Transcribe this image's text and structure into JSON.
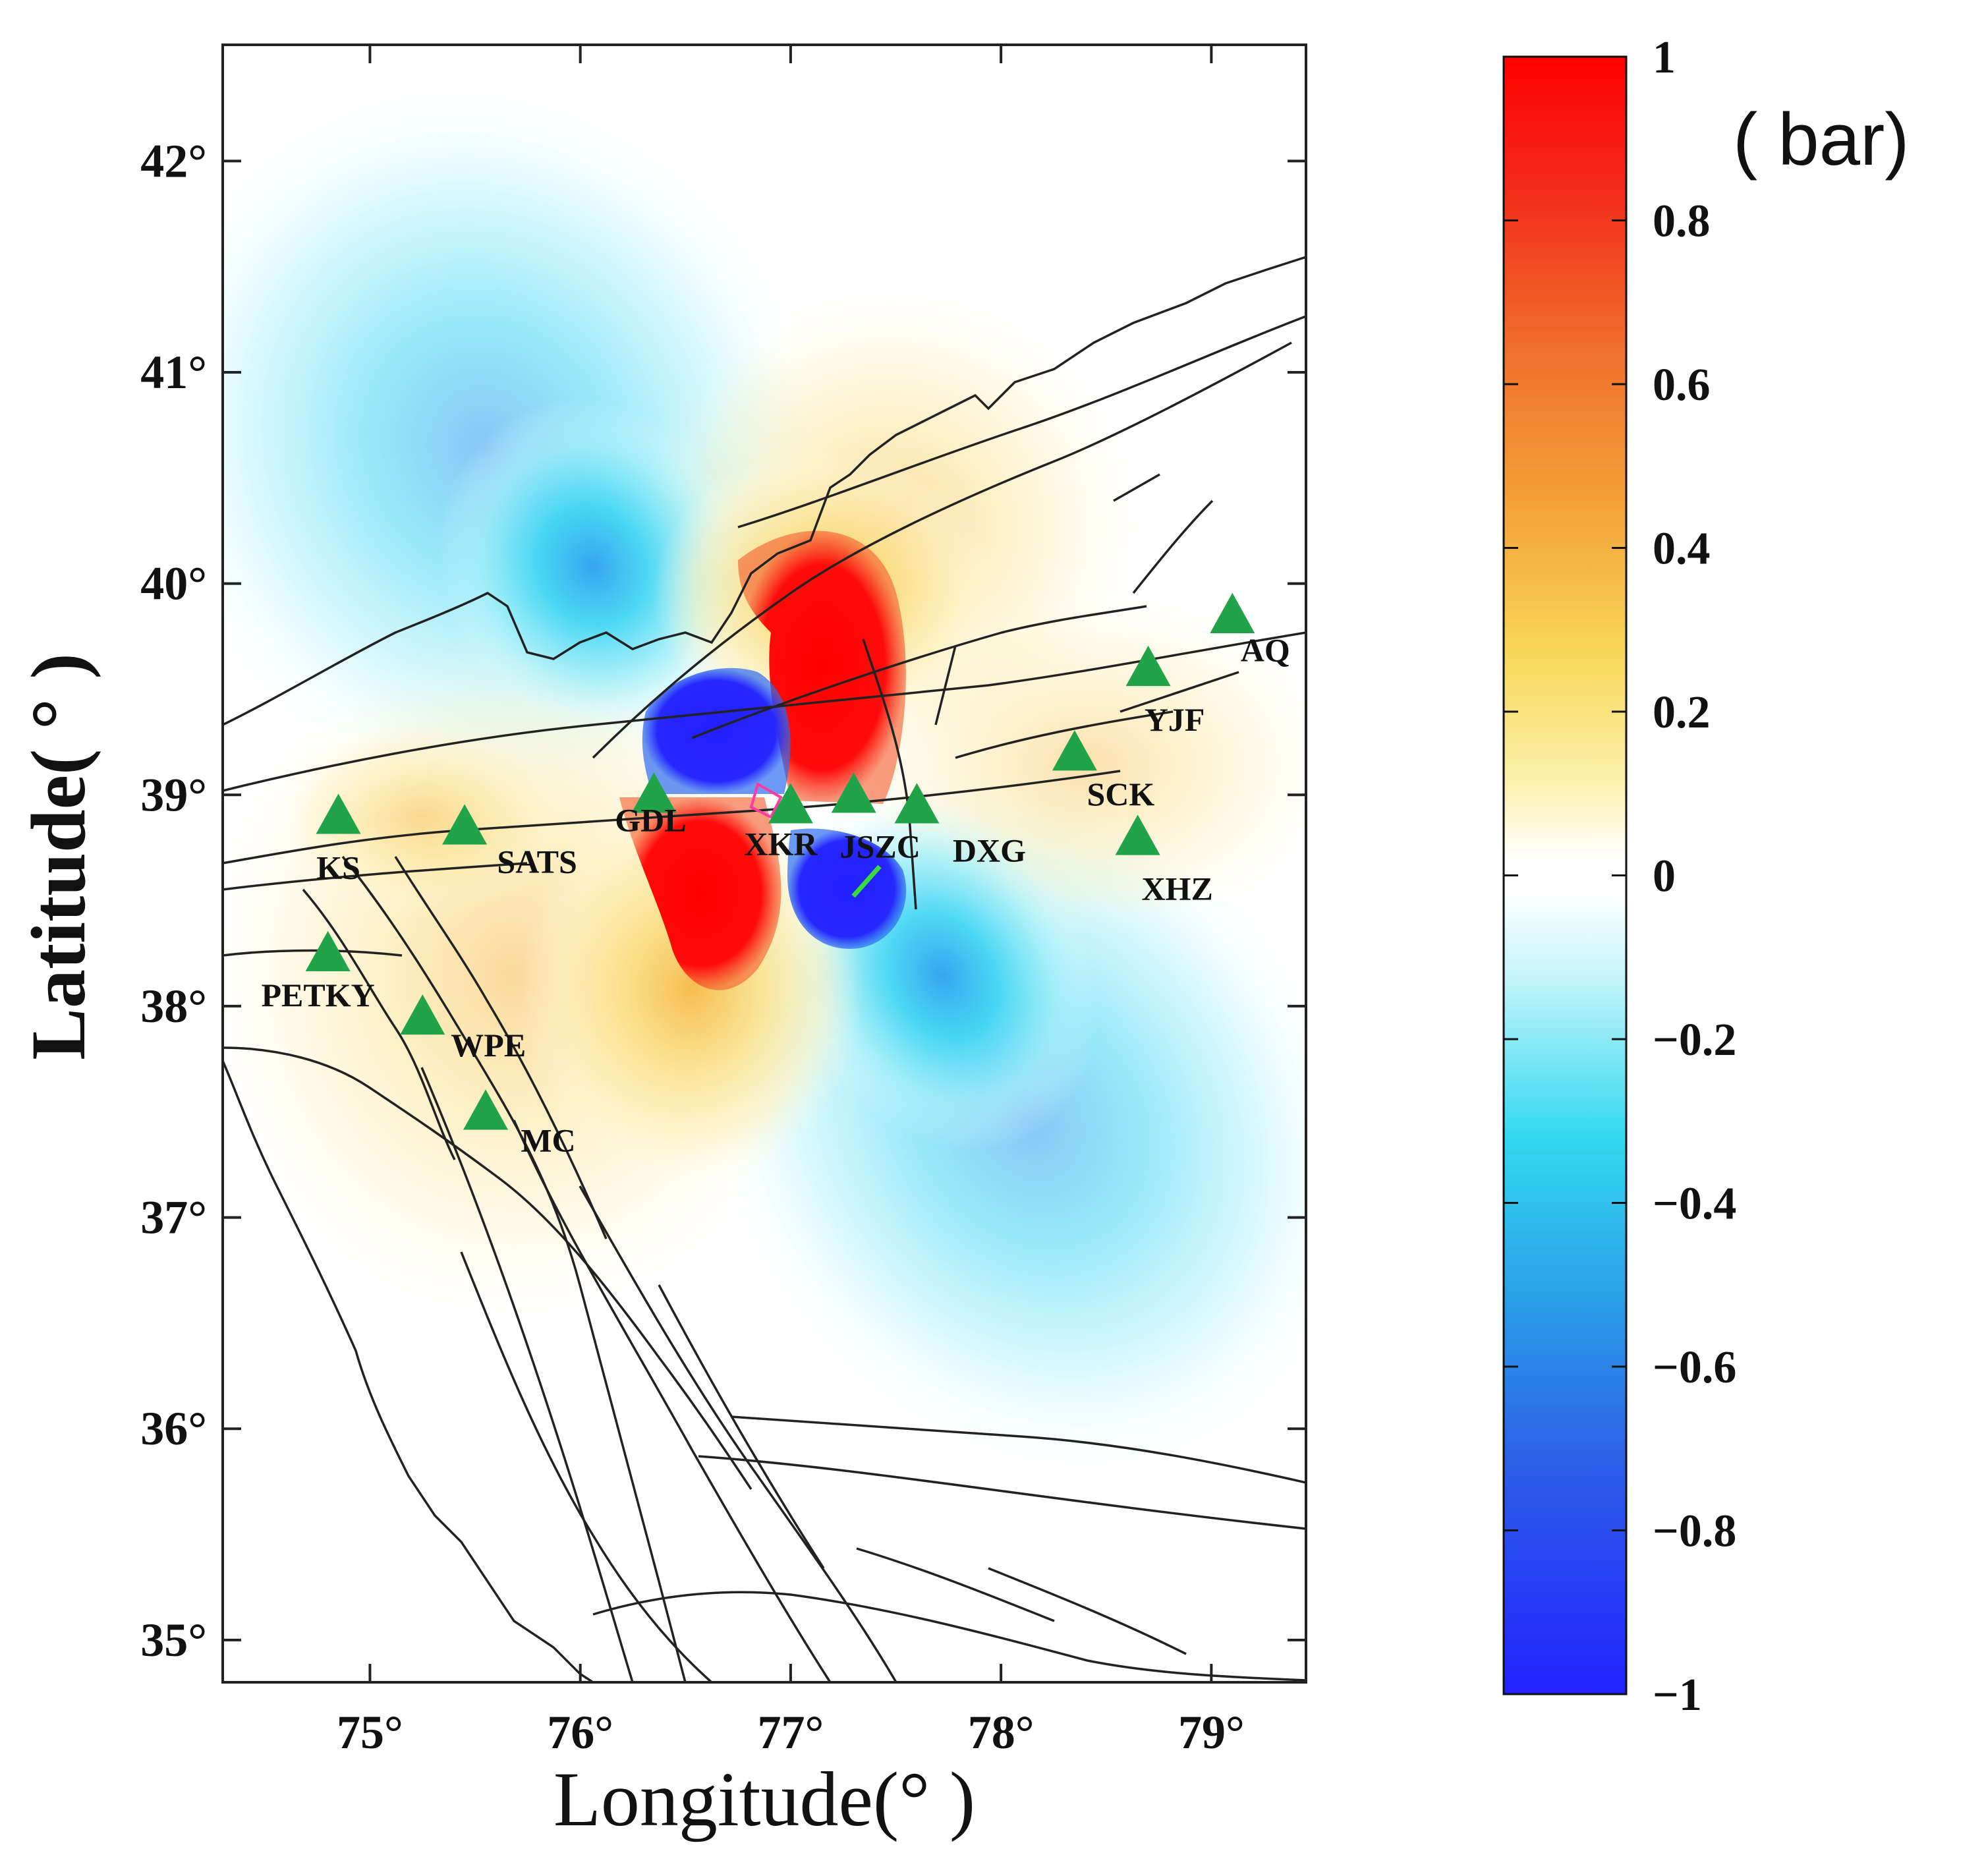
{
  "map": {
    "lon_range": [
      74.3,
      79.45
    ],
    "lat_range": [
      34.8,
      42.55
    ],
    "x_ticks": [
      {
        "value": 75,
        "label": "75°"
      },
      {
        "value": 76,
        "label": "76°"
      },
      {
        "value": 77,
        "label": "77°"
      },
      {
        "value": 78,
        "label": "78°"
      },
      {
        "value": 79,
        "label": "79°"
      }
    ],
    "y_ticks": [
      {
        "value": 35,
        "label": "35°"
      },
      {
        "value": 36,
        "label": "36°"
      },
      {
        "value": 37,
        "label": "37°"
      },
      {
        "value": 38,
        "label": "38°"
      },
      {
        "value": 39,
        "label": "39°"
      },
      {
        "value": 40,
        "label": "40°"
      },
      {
        "value": 41,
        "label": "41°"
      },
      {
        "value": 42,
        "label": "42°"
      }
    ],
    "xlabel": "Longitude(° )",
    "ylabel": "Latitude( ° )",
    "station_color": "#21a34a",
    "fault_color": "#222222",
    "stations": [
      {
        "name": "KS",
        "lon": 74.85,
        "lat": 38.9
      },
      {
        "name": "SATS",
        "lon": 75.45,
        "lat": 38.85
      },
      {
        "name": "GDL",
        "lon": 76.35,
        "lat": 39.0
      },
      {
        "name": "XKR",
        "lon": 77.0,
        "lat": 38.95
      },
      {
        "name": "JSZC",
        "lon": 77.3,
        "lat": 39.0
      },
      {
        "name": "DXG",
        "lon": 77.6,
        "lat": 38.95
      },
      {
        "name": "SCK",
        "lon": 78.35,
        "lat": 39.2
      },
      {
        "name": "XHZ",
        "lon": 78.65,
        "lat": 38.8
      },
      {
        "name": "YJF",
        "lon": 78.7,
        "lat": 39.6
      },
      {
        "name": "AQ",
        "lon": 79.1,
        "lat": 39.85
      },
      {
        "name": "PETKY",
        "lon": 74.8,
        "lat": 38.25
      },
      {
        "name": "WPE",
        "lon": 75.25,
        "lat": 37.95
      },
      {
        "name": "MC",
        "lon": 75.55,
        "lat": 37.5
      }
    ]
  },
  "colorbar": {
    "range": [
      -1,
      1
    ],
    "unit": "( bar)",
    "ticks": [
      {
        "value": 1,
        "label": "1"
      },
      {
        "value": 0.8,
        "label": "0.8"
      },
      {
        "value": 0.6,
        "label": "0.6"
      },
      {
        "value": 0.4,
        "label": "0.4"
      },
      {
        "value": 0.2,
        "label": "0.2"
      },
      {
        "value": 0,
        "label": "0"
      },
      {
        "value": -0.2,
        "label": "−0.2"
      },
      {
        "value": -0.4,
        "label": "−0.4"
      },
      {
        "value": -0.6,
        "label": "−0.6"
      },
      {
        "value": -0.8,
        "label": "−0.8"
      },
      {
        "value": -1,
        "label": "−1"
      }
    ],
    "colors": {
      "max": "#ff0000",
      "high": "#f08030",
      "mid_high": "#f5c542",
      "low_pos": "#fff8d0",
      "zero": "#ffffff",
      "low_neg": "#c8f6fa",
      "mid_neg": "#30d6f0",
      "high_neg": "#2f7df2",
      "min": "#2222ff"
    }
  }
}
